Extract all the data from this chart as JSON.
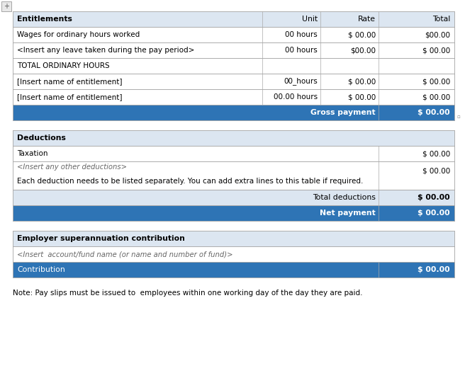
{
  "bg_color": "#ffffff",
  "header_bg": "#dce6f1",
  "blue_bg": "#2e74b5",
  "white_bg": "#ffffff",
  "border_color": "#aaaaaa",
  "white_text": "#ffffff",
  "dark_text": "#000000",
  "gray_text": "#888888",
  "note_text": "Note: Pay slips must be issued to  employees within one working day of the day they are paid.",
  "s1_header": [
    "Entitlements",
    "Unit",
    "Rate",
    "Total"
  ],
  "s1_rows": [
    [
      "Wages for ordinary hours worked",
      "00 hours",
      "$ 00.00",
      "$00.00",
      "white"
    ],
    [
      "<Insert any leave taken during the pay period>",
      "00 hours",
      "$00.00",
      "$ 00.00",
      "white"
    ],
    [
      "TOTAL ORDINARY HOURS",
      "",
      "",
      "",
      "white"
    ],
    [
      "[Insert name of entitlement]",
      "00_hours",
      "$ 00.00",
      "$ 00.00",
      "white"
    ],
    [
      "[Insert name of entitlement]",
      "00.00 hours",
      "$ 00.00",
      "$ 00.00",
      "white"
    ]
  ],
  "gross_label": "Gross payment",
  "gross_value": "$ 00.00",
  "s2_header": "Deductions",
  "s2_tax_label": "Taxation",
  "s2_tax_value": "$ 00.00",
  "s2_insert": "<Insert any other deductions>",
  "s2_note": "Each deduction needs to be listed separately. You can add extra lines to this table if required.",
  "s2_note_value": "$ 00.00",
  "total_ded_label": "Total deductions",
  "total_ded_value": "$ 00.00",
  "net_label": "Net payment",
  "net_value": "$ 00.00",
  "s3_header": "Employer superannuation contribution",
  "s3_account": "<Insert  account/fund name (or name and number of fund)>",
  "contrib_label": "Contribution",
  "contrib_value": "$ 00.00"
}
